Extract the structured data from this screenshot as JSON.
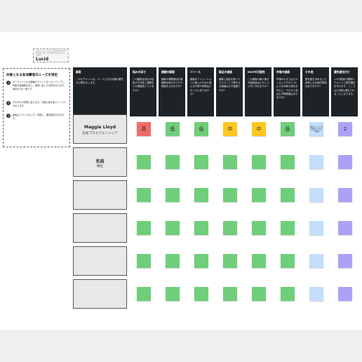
{
  "logo": {
    "small_text": "このテンプレートは、LucidのDocument Cloudの一部、Lucidsparkで作成されています。",
    "brand": "Lucid"
  },
  "panel": {
    "title": "対象となる各消費者のニーズを特定",
    "steps": [
      {
        "num": "1",
        "text": "ターゲットとなる顧客セグメントをリストアップし、列順の各顧客を記入。個体に着した分析を行います。最初の1は一例です。"
      },
      {
        "num": "2",
        "text": "それぞれの質問に答えます。付箋の色を変えてレベルを示します。"
      },
      {
        "num": "3",
        "text": "最後のバランナを入力・評価し、優先順位を付けます。"
      }
    ]
  },
  "headers": [
    {
      "title": "顧客",
      "desc": "このセグメントは、ペースとなる共通の属性や心理を示します。"
    },
    {
      "title": "悩みの深さ",
      "desc": "この顧客は自社の目指す方向性と課題をどの程度感じていますか?"
    },
    {
      "title": "課題の範囲",
      "desc": "顧客の課題数は仕事範囲全体の中でどの程度を占めますか?"
    },
    {
      "title": "リソース",
      "desc": "顧客がソリューションに購入のために使える予算や時間はどのくらいありますか?"
    },
    {
      "title": "製品の価値",
      "desc": "顧客に製品を使ってもらうことで得られる価値はどの程度ですか?"
    },
    {
      "title": "MVPの可能性",
      "desc": "この顧客の最小実行可能製品はどのくらい早く作れますか?"
    },
    {
      "title": "市場の価値",
      "desc": "市場の大きさはどのくらいですか?このような対象の変化を中心に、それらと見込む市場規模はありますか?"
    },
    {
      "title": "その他",
      "desc": "優先度を決める上で参考になる検討事項はありますか?"
    },
    {
      "title": "優先順位付け",
      "desc": "1-5の数値で顧客セグメントに優先順位を付けます。ここでは1が最も優先されることになります。"
    }
  ],
  "rows": [
    {
      "name": "Maggie Lloyd",
      "sub": "生産プロセスエンジニア"
    },
    {
      "name": "名前",
      "sub": "職位"
    },
    {
      "name": "",
      "sub": ""
    },
    {
      "name": "",
      "sub": ""
    },
    {
      "name": "",
      "sub": ""
    },
    {
      "name": "",
      "sub": ""
    }
  ],
  "first_row_values": [
    "高",
    "低",
    "低",
    "中",
    "中",
    "低",
    "",
    "2"
  ],
  "other_note_text": "誰かにとってのお気に入りの一品は?",
  "colors": {
    "high": "#f06b6b",
    "low": "#6fce7a",
    "mid": "#ffc81e",
    "other": "#c4ddfb",
    "priority": "#aaa3f5",
    "header_bg": "#1e2328"
  },
  "first_row_colors": [
    "high",
    "low",
    "low",
    "mid",
    "mid",
    "low",
    "other",
    "priority"
  ]
}
